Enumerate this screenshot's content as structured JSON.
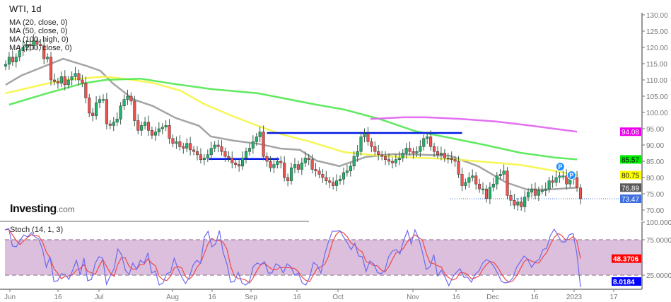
{
  "header": {
    "title": "WTI, 1d"
  },
  "legend": [
    "MA (20, close, 0)",
    "MA (50, close, 0)",
    "MA (100, high, 0)",
    "MA (200, close, 0)"
  ],
  "logo": {
    "name": "Investing",
    "suffix": ".com"
  },
  "stoch_title": "Stoch (14, 1, 3)",
  "colors": {
    "up": "#1fb36b",
    "down": "#ef5350",
    "ma20": "#9a9a9a",
    "ma50": "#f5f542",
    "ma100": "#4ee84e",
    "ma200": "#e060f0",
    "level": "#0018e8",
    "stoch_k": "#6a6af0",
    "stoch_d": "#f04848",
    "stoch_band": "#dcbedd"
  },
  "chart_data": [
    {
      "type": "candlestick",
      "title": "WTI, 1d",
      "ylim": [
        70,
        130
      ],
      "y_ticks": [
        "130.00",
        "125.00",
        "120.00",
        "115.00",
        "110.00",
        "105.00",
        "100.00",
        "95.00",
        "90.00",
        "85.00",
        "80.00",
        "75.00",
        "70.00"
      ],
      "x_ticks": [
        "Jun",
        "16",
        "Jul",
        "Aug",
        "16",
        "Sep",
        "16",
        "Oct",
        "Nov",
        "16",
        "Dec",
        "16",
        "2023",
        "17"
      ],
      "closes": [
        114.8,
        117,
        115.5,
        117,
        119,
        120,
        121,
        120.5,
        122,
        121,
        120.5,
        116.5,
        117,
        110,
        109.5,
        109,
        111,
        108.5,
        110,
        111,
        112,
        110,
        109,
        104.5,
        99.8,
        99,
        103,
        104,
        104,
        96.5,
        96,
        97,
        98,
        102,
        104,
        105,
        103.5,
        97.5,
        94.5,
        96,
        97,
        94.5,
        93,
        94,
        95,
        95.5,
        96,
        92,
        90.5,
        91,
        89.5,
        89,
        90.5,
        88.5,
        88,
        87,
        85.5,
        86,
        87,
        89,
        90,
        89.5,
        88,
        86.5,
        86,
        84.5,
        84,
        83.5,
        86,
        88,
        89,
        91,
        92.5,
        94,
        86.5,
        85,
        83,
        84,
        85,
        84.5,
        80,
        79,
        83,
        84,
        82.5,
        84.5,
        86,
        85.5,
        82.5,
        82,
        81,
        80,
        79,
        78.5,
        77.5,
        79,
        79.5,
        81.5,
        82,
        83.5,
        86.5,
        88,
        92.5,
        93.5,
        91,
        89.5,
        88,
        87,
        86.5,
        85.5,
        85,
        84.5,
        85.5,
        86,
        87.5,
        89,
        88,
        87.5,
        88,
        89.5,
        92,
        92.5,
        89.5,
        88,
        87,
        87.5,
        86,
        86,
        85.5,
        85,
        81,
        77.5,
        78.5,
        80,
        80.5,
        78,
        76.5,
        76.5,
        73.5,
        77,
        78,
        80.5,
        81,
        82,
        74.5,
        73,
        71.5,
        72.5,
        71,
        74,
        75.5,
        76.5,
        74.5,
        76,
        76,
        76.5,
        79,
        78.5,
        80,
        80.5,
        80.5,
        78,
        79.5,
        80,
        76.8,
        73.47
      ],
      "moving_averages": [
        {
          "name": "MA (20, close, 0)",
          "color_key": "ma20",
          "points": [
            [
              0,
              108.5
            ],
            [
              4.4,
              111.3
            ],
            [
              16.5,
              116.5
            ],
            [
              23.2,
              114.3
            ],
            [
              27.2,
              112.8
            ],
            [
              30.7,
              109
            ],
            [
              36.7,
              104
            ],
            [
              42.2,
              102
            ],
            [
              48.8,
              98.3
            ],
            [
              55.5,
              95.9
            ],
            [
              58.9,
              92.6
            ],
            [
              65.6,
              91.3
            ],
            [
              72.4,
              90.4
            ],
            [
              79,
              88.9
            ],
            [
              84.5,
              88.5
            ],
            [
              89.2,
              85.2
            ],
            [
              95.8,
              83.5
            ],
            [
              103.3,
              86.3
            ],
            [
              111.4,
              87.2
            ],
            [
              119.4,
              87
            ],
            [
              127.5,
              86.7
            ],
            [
              135.6,
              83.5
            ],
            [
              143.6,
              78.5
            ],
            [
              149.7,
              76.3
            ],
            [
              155.7,
              76.3
            ],
            [
              164,
              76.89
            ]
          ]
        },
        {
          "name": "MA (50, close, 0)",
          "color_key": "ma50",
          "points": [
            [
              0,
              105.9
            ],
            [
              11.9,
              108.9
            ],
            [
              18.6,
              110.2
            ],
            [
              28.6,
              111
            ],
            [
              35.3,
              110.2
            ],
            [
              42.2,
              109.1
            ],
            [
              50.2,
              106.7
            ],
            [
              56.9,
              102.6
            ],
            [
              65.6,
              98.7
            ],
            [
              72.4,
              95.9
            ],
            [
              79.1,
              93.3
            ],
            [
              87.1,
              91.1
            ],
            [
              97.2,
              87.8
            ],
            [
              107.3,
              86.7
            ],
            [
              117.4,
              86.1
            ],
            [
              127.5,
              85.7
            ],
            [
              137.6,
              84.8
            ],
            [
              147.7,
              83.9
            ],
            [
              157.8,
              82
            ],
            [
              164,
              80.75
            ]
          ]
        },
        {
          "name": "MA (100, high, 0)",
          "color_key": "ma100",
          "points": [
            [
              1,
              102.4
            ],
            [
              11.9,
              105.9
            ],
            [
              22,
              108.9
            ],
            [
              28.6,
              110
            ],
            [
              38.7,
              110.4
            ],
            [
              48.8,
              108.7
            ],
            [
              58.9,
              107.2
            ],
            [
              72.4,
              105.9
            ],
            [
              89.2,
              102.4
            ],
            [
              97.2,
              100.9
            ],
            [
              107.3,
              98
            ],
            [
              117.4,
              94.3
            ],
            [
              127.5,
              92.2
            ],
            [
              137.6,
              90
            ],
            [
              147.7,
              87.6
            ],
            [
              157.8,
              86.1
            ],
            [
              164,
              85.57
            ]
          ]
        },
        {
          "name": "MA (200, close, 0)",
          "color_key": "ma200",
          "points": [
            [
              104.7,
              98
            ],
            [
              114,
              98.5
            ],
            [
              120.8,
              98.5
            ],
            [
              130.9,
              98
            ],
            [
              141,
              97.2
            ],
            [
              151.1,
              95.9
            ],
            [
              164,
              94.08
            ]
          ]
        }
      ],
      "levels": [
        {
          "price": 93.7,
          "from_bar": 75,
          "to_bar": 131
        },
        {
          "price": 85.7,
          "from_bar": 58.3,
          "to_bar": 78.5
        }
      ],
      "current_price_line": 73.47,
      "badges": [
        {
          "value": "94.08",
          "price": 94.08,
          "bg": "#ee00ee",
          "fg": "#ffffff"
        },
        {
          "value": "85.57",
          "price": 85.57,
          "bg": "#00ee00",
          "fg": "#111111"
        },
        {
          "value": "80.75",
          "price": 80.75,
          "bg": "#ffff00",
          "fg": "#111111"
        },
        {
          "value": "76.89",
          "price": 76.89,
          "bg": "#5a5a5a",
          "fg": "#ffffff"
        },
        {
          "value": "73.47",
          "price": 73.47,
          "bg": "#3e6fe0",
          "fg": "#ffffff"
        }
      ],
      "markers": [
        {
          "label": "P",
          "bar": 160,
          "price": 82.9
        },
        {
          "label": "P",
          "bar": 161.2,
          "price": 81.6
        }
      ]
    },
    {
      "type": "line",
      "title": "Stoch (14, 1, 3)",
      "ylim": [
        0,
        100
      ],
      "y_ticks": [
        "100.0000",
        "75.0000",
        "25.0000"
      ],
      "band": [
        25,
        75
      ],
      "k_values": [
        89,
        91,
        66,
        65,
        74,
        82,
        79,
        85,
        79,
        76,
        61,
        36,
        51,
        16,
        17,
        27,
        26,
        19,
        32,
        46,
        25,
        49,
        17,
        19,
        42,
        51,
        49,
        12,
        24,
        34,
        62,
        54,
        32,
        26,
        42,
        33,
        46,
        42,
        56,
        28,
        31,
        11,
        14,
        27,
        29,
        49,
        34,
        22,
        13,
        22,
        39,
        46,
        42,
        79,
        87,
        65,
        69,
        88,
        57,
        41,
        15,
        16,
        29,
        14,
        11,
        16,
        37,
        42,
        40,
        44,
        28,
        28,
        41,
        38,
        28,
        41,
        37,
        25,
        28,
        14,
        11,
        22,
        43,
        39,
        28,
        54,
        72,
        87,
        87,
        88,
        79,
        71,
        61,
        70,
        52,
        51,
        30,
        45,
        41,
        29,
        27,
        32,
        51,
        59,
        61,
        55,
        74,
        88,
        69,
        89,
        77,
        57,
        33,
        37,
        54,
        24,
        32,
        22,
        10,
        22,
        29,
        34,
        22,
        22,
        15,
        26,
        31,
        42,
        47,
        44,
        37,
        27,
        16,
        14,
        15,
        21,
        36,
        44,
        52,
        47,
        36,
        44,
        47,
        61,
        63,
        81,
        90,
        81,
        72,
        72,
        82,
        84,
        57,
        8.0184
      ],
      "badges": [
        {
          "value": "48.3706",
          "level": 48.3706,
          "bg": "#ff0000",
          "fg": "#ffffff"
        },
        {
          "value": "8.0184",
          "level": 8.0184,
          "bg": "#0000ff",
          "fg": "#ffffff"
        }
      ]
    }
  ]
}
